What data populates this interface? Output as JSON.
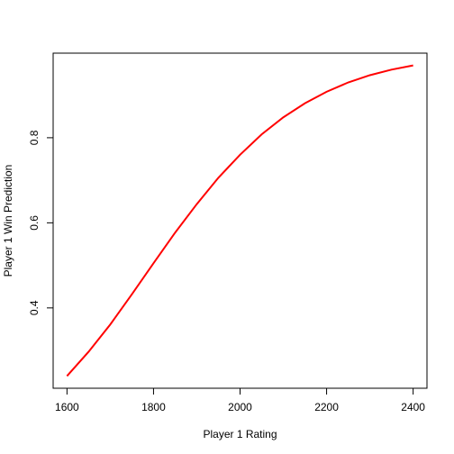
{
  "chart_data": {
    "type": "line",
    "title": "",
    "xlabel": "Player 1 Rating",
    "ylabel": "Player 1 Win Prediction",
    "xlim": [
      1568,
      2432
    ],
    "ylim": [
      0.2112,
      0.9988
    ],
    "xticks": [
      1600,
      1800,
      2000,
      2200,
      2400
    ],
    "yticks": [
      0.4,
      0.6,
      0.8
    ],
    "xtick_labels": [
      "1600",
      "1800",
      "2000",
      "2200",
      "2400"
    ],
    "ytick_labels": [
      "0.4",
      "0.6",
      "0.8"
    ],
    "grid": false,
    "legend": "none",
    "series": [
      {
        "color": "#ff0000",
        "x": [
          1600,
          1650,
          1700,
          1750,
          1800,
          1850,
          1900,
          1950,
          2000,
          2050,
          2100,
          2150,
          2200,
          2250,
          2300,
          2350,
          2400
        ],
        "y": [
          0.24,
          0.297,
          0.361,
          0.432,
          0.505,
          0.577,
          0.644,
          0.706,
          0.76,
          0.808,
          0.848,
          0.881,
          0.908,
          0.93,
          0.947,
          0.96,
          0.97
        ]
      }
    ]
  }
}
